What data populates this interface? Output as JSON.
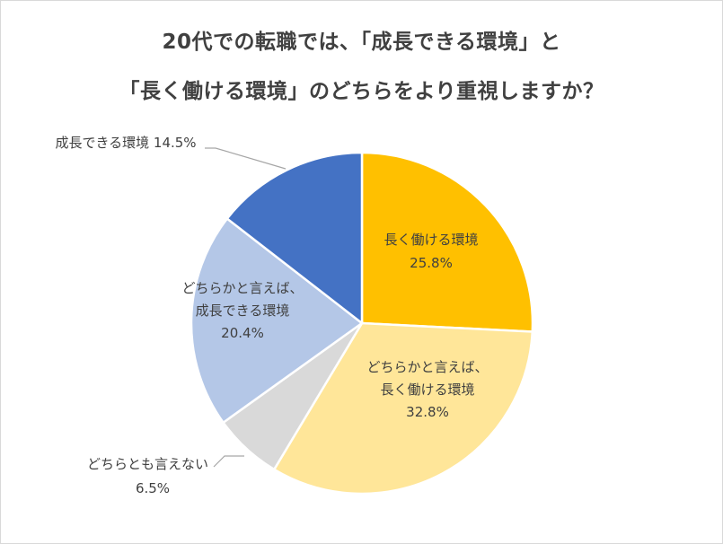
{
  "chart_data": {
    "type": "pie",
    "title_lines": [
      "20代での転職では、「成長できる環境」と",
      "「長く働ける環境」のどちらをより重視しますか？"
    ],
    "slices": [
      {
        "label_lines": [
          "長く働ける環境"
        ],
        "value": 25.8,
        "value_label": "25.8%",
        "color": "#FFC000"
      },
      {
        "label_lines": [
          "どちらかと言えば、",
          "長く働ける環境"
        ],
        "value": 32.8,
        "value_label": "32.8%",
        "color": "#FFE699"
      },
      {
        "label_lines": [
          "どちらとも言えない"
        ],
        "value": 6.5,
        "value_label": "6.5%",
        "color": "#D9D9D9"
      },
      {
        "label_lines": [
          "どちらかと言えば、",
          "成長できる環境"
        ],
        "value": 20.4,
        "value_label": "20.4%",
        "color": "#B4C7E7"
      },
      {
        "label_lines": [
          "成長できる環境"
        ],
        "value": 14.5,
        "value_label": "14.5%",
        "color": "#4472C4"
      }
    ],
    "start_angle_deg": 0,
    "direction": "clockwise",
    "legend": "none"
  }
}
